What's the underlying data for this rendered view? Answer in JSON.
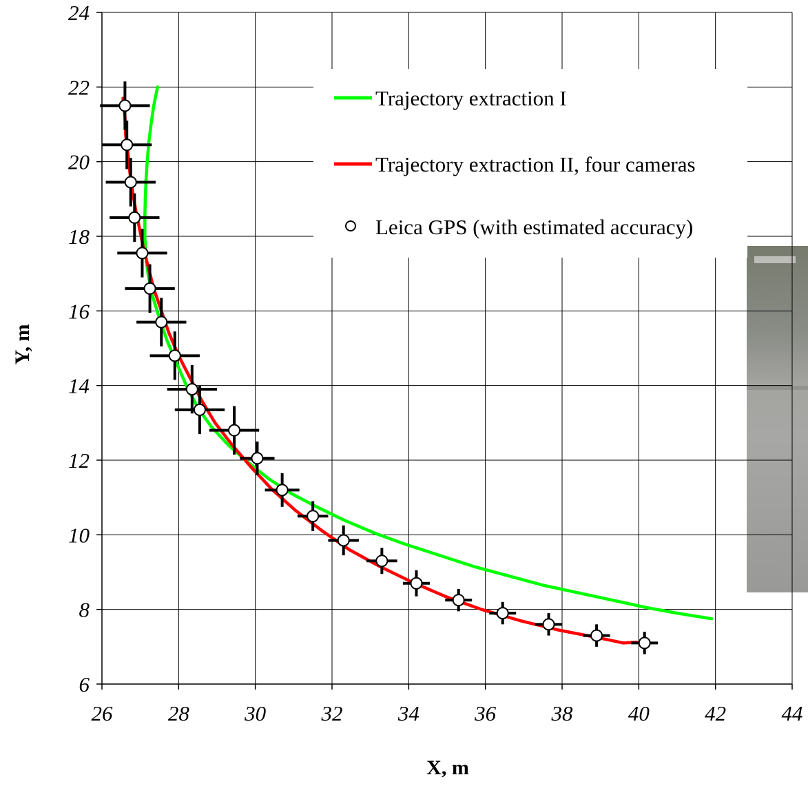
{
  "chart_data": {
    "type": "line",
    "xlabel": "X, m",
    "ylabel": "Y, m",
    "xlim": [
      26,
      44
    ],
    "ylim": [
      6,
      24
    ],
    "xticks": [
      26,
      28,
      30,
      32,
      34,
      36,
      38,
      40,
      42,
      44
    ],
    "yticks": [
      6,
      8,
      10,
      12,
      14,
      16,
      18,
      20,
      22,
      24
    ],
    "grid": true,
    "legend_position": "top-right",
    "series": [
      {
        "name": "Trajectory extraction I",
        "color": "#00ff00",
        "kind": "line",
        "points": [
          [
            27.45,
            22.0
          ],
          [
            27.35,
            21.5
          ],
          [
            27.28,
            21.0
          ],
          [
            27.22,
            20.5
          ],
          [
            27.18,
            20.0
          ],
          [
            27.15,
            19.5
          ],
          [
            27.13,
            19.0
          ],
          [
            27.12,
            18.5
          ],
          [
            27.12,
            18.0
          ],
          [
            27.14,
            17.5
          ],
          [
            27.2,
            17.0
          ],
          [
            27.32,
            16.4
          ],
          [
            27.5,
            15.8
          ],
          [
            27.7,
            15.2
          ],
          [
            27.95,
            14.6
          ],
          [
            28.2,
            14.0
          ],
          [
            28.5,
            13.4
          ],
          [
            28.85,
            12.9
          ],
          [
            29.3,
            12.4
          ],
          [
            29.8,
            11.95
          ],
          [
            30.35,
            11.5
          ],
          [
            30.95,
            11.1
          ],
          [
            31.6,
            10.75
          ],
          [
            32.3,
            10.4
          ],
          [
            33.1,
            10.05
          ],
          [
            33.9,
            9.75
          ],
          [
            34.8,
            9.45
          ],
          [
            35.7,
            9.15
          ],
          [
            36.6,
            8.9
          ],
          [
            37.5,
            8.65
          ],
          [
            38.4,
            8.45
          ],
          [
            39.3,
            8.25
          ],
          [
            40.2,
            8.05
          ],
          [
            41.0,
            7.9
          ],
          [
            41.9,
            7.75
          ]
        ]
      },
      {
        "name": "Trajectory extraction II, four cameras",
        "color": "#ff0000",
        "kind": "line",
        "points": [
          [
            26.55,
            21.7
          ],
          [
            26.6,
            21.2
          ],
          [
            26.62,
            20.7
          ],
          [
            26.68,
            20.2
          ],
          [
            26.73,
            19.7
          ],
          [
            26.8,
            19.2
          ],
          [
            26.88,
            18.7
          ],
          [
            26.98,
            18.2
          ],
          [
            27.08,
            17.7
          ],
          [
            27.2,
            17.2
          ],
          [
            27.35,
            16.6
          ],
          [
            27.55,
            16.0
          ],
          [
            27.75,
            15.4
          ],
          [
            28.0,
            14.8
          ],
          [
            28.3,
            14.2
          ],
          [
            28.6,
            13.6
          ],
          [
            28.95,
            13.0
          ],
          [
            29.4,
            12.4
          ],
          [
            29.9,
            11.8
          ],
          [
            30.45,
            11.2
          ],
          [
            31.05,
            10.65
          ],
          [
            31.75,
            10.1
          ],
          [
            32.45,
            9.6
          ],
          [
            33.25,
            9.15
          ],
          [
            34.05,
            8.75
          ],
          [
            34.95,
            8.35
          ],
          [
            35.9,
            8.0
          ],
          [
            36.9,
            7.7
          ],
          [
            37.9,
            7.45
          ],
          [
            38.9,
            7.25
          ],
          [
            39.6,
            7.1
          ],
          [
            39.95,
            7.12
          ]
        ]
      },
      {
        "name": "Leica GPS (with estimated accuracy)",
        "color": "#000000",
        "kind": "scatter-errorbars",
        "points": [
          {
            "x": 26.6,
            "y": 21.5,
            "xerr": 0.65,
            "yerr": 0.65
          },
          {
            "x": 26.65,
            "y": 20.45,
            "xerr": 0.65,
            "yerr": 0.65
          },
          {
            "x": 26.75,
            "y": 19.45,
            "xerr": 0.65,
            "yerr": 0.65
          },
          {
            "x": 26.85,
            "y": 18.5,
            "xerr": 0.65,
            "yerr": 0.65
          },
          {
            "x": 27.05,
            "y": 17.55,
            "xerr": 0.65,
            "yerr": 0.65
          },
          {
            "x": 27.25,
            "y": 16.6,
            "xerr": 0.65,
            "yerr": 0.65
          },
          {
            "x": 27.55,
            "y": 15.7,
            "xerr": 0.65,
            "yerr": 0.65
          },
          {
            "x": 27.9,
            "y": 14.8,
            "xerr": 0.65,
            "yerr": 0.65
          },
          {
            "x": 28.35,
            "y": 13.9,
            "xerr": 0.65,
            "yerr": 0.65
          },
          {
            "x": 28.55,
            "y": 13.35,
            "xerr": 0.65,
            "yerr": 0.65
          },
          {
            "x": 29.45,
            "y": 12.8,
            "xerr": 0.65,
            "yerr": 0.65
          },
          {
            "x": 30.05,
            "y": 12.05,
            "xerr": 0.45,
            "yerr": 0.45
          },
          {
            "x": 30.7,
            "y": 11.2,
            "xerr": 0.45,
            "yerr": 0.45
          },
          {
            "x": 31.5,
            "y": 10.5,
            "xerr": 0.4,
            "yerr": 0.4
          },
          {
            "x": 32.3,
            "y": 9.85,
            "xerr": 0.4,
            "yerr": 0.4
          },
          {
            "x": 33.3,
            "y": 9.3,
            "xerr": 0.4,
            "yerr": 0.35
          },
          {
            "x": 34.2,
            "y": 8.7,
            "xerr": 0.35,
            "yerr": 0.35
          },
          {
            "x": 35.3,
            "y": 8.25,
            "xerr": 0.35,
            "yerr": 0.3
          },
          {
            "x": 36.45,
            "y": 7.9,
            "xerr": 0.35,
            "yerr": 0.3
          },
          {
            "x": 37.65,
            "y": 7.6,
            "xerr": 0.35,
            "yerr": 0.3
          },
          {
            "x": 38.9,
            "y": 7.3,
            "xerr": 0.35,
            "yerr": 0.3
          },
          {
            "x": 40.15,
            "y": 7.1,
            "xerr": 0.35,
            "yerr": 0.3
          }
        ]
      }
    ]
  }
}
